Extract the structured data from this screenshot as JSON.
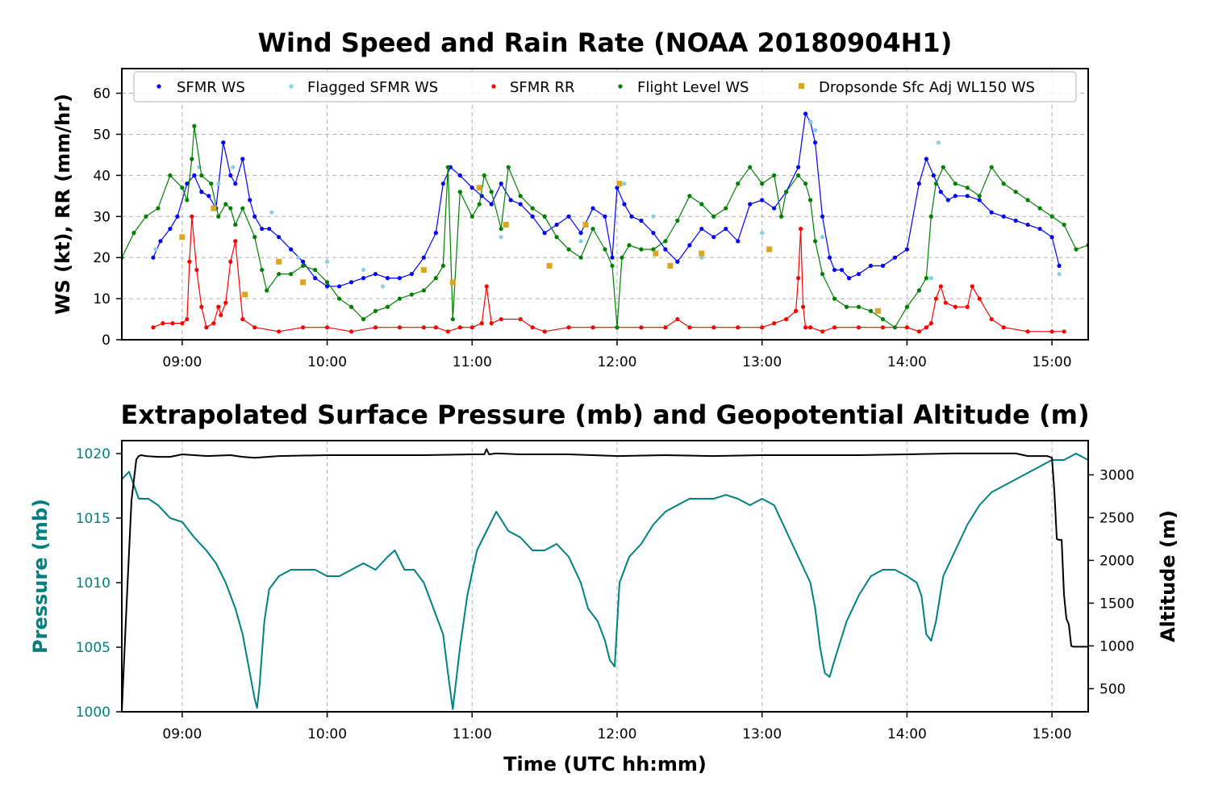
{
  "chart_data": [
    {
      "type": "line",
      "title": "Wind Speed and Rain Rate (NOAA 20180904H1)",
      "ylabel": "WS (kt), RR (mm/hr)",
      "xlabel": "",
      "x_unit": "UTC hh:mm",
      "xlim": [
        "08:35",
        "15:15"
      ],
      "ylim": [
        0,
        66
      ],
      "x_ticks": [
        "09:00",
        "10:00",
        "11:00",
        "12:00",
        "13:00",
        "14:00",
        "15:00"
      ],
      "y_ticks": [
        0,
        10,
        20,
        30,
        40,
        50,
        60
      ],
      "grid": true,
      "legend_position": "top",
      "series": [
        {
          "name": "SFMR WS",
          "color": "#0000ff",
          "marker": "dot",
          "x": [
            "08:48",
            "08:51",
            "08:55",
            "08:58",
            "09:02",
            "09:05",
            "09:08",
            "09:11",
            "09:14",
            "09:17",
            "09:20",
            "09:22",
            "09:25",
            "09:28",
            "09:30",
            "09:33",
            "09:36",
            "09:40",
            "09:45",
            "09:50",
            "09:55",
            "10:00",
            "10:05",
            "10:10",
            "10:15",
            "10:20",
            "10:25",
            "10:30",
            "10:35",
            "10:40",
            "10:45",
            "10:48",
            "10:51",
            "10:55",
            "11:00",
            "11:04",
            "11:08",
            "11:12",
            "11:16",
            "11:20",
            "11:25",
            "11:30",
            "11:35",
            "11:40",
            "11:45",
            "11:50",
            "11:55",
            "11:58",
            "12:00",
            "12:03",
            "12:06",
            "12:10",
            "12:15",
            "12:20",
            "12:25",
            "12:30",
            "12:35",
            "12:40",
            "12:45",
            "12:50",
            "12:55",
            "13:00",
            "13:05",
            "13:10",
            "13:15",
            "13:18",
            "13:20",
            "13:22",
            "13:25",
            "13:28",
            "13:30",
            "13:33",
            "13:36",
            "13:40",
            "13:45",
            "13:50",
            "13:55",
            "14:00",
            "14:05",
            "14:08",
            "14:11",
            "14:14",
            "14:17",
            "14:20",
            "14:25",
            "14:30",
            "14:35",
            "14:40",
            "14:45",
            "14:50",
            "14:55",
            "15:00",
            "15:03"
          ],
          "values": [
            20,
            24,
            27,
            30,
            38,
            40,
            36,
            35,
            32,
            48,
            40,
            38,
            44,
            34,
            30,
            27,
            27,
            25,
            22,
            19,
            15,
            13,
            13,
            14,
            15,
            16,
            15,
            15,
            16,
            20,
            26,
            38,
            42,
            40,
            37,
            35,
            33,
            38,
            34,
            33,
            30,
            26,
            28,
            30,
            26,
            32,
            30,
            20,
            37,
            33,
            30,
            29,
            26,
            22,
            19,
            23,
            27,
            25,
            27,
            24,
            33,
            34,
            32,
            36,
            42,
            55,
            53,
            48,
            30,
            20,
            17,
            17,
            15,
            16,
            18,
            18,
            20,
            22,
            38,
            44,
            40,
            36,
            34,
            35,
            35,
            34,
            31,
            30,
            29,
            28,
            27,
            25,
            18
          ]
        },
        {
          "name": "Flagged SFMR WS",
          "color": "#87ceeb",
          "marker": "dot",
          "x": [
            "08:49",
            "09:07",
            "09:15",
            "09:21",
            "09:37",
            "09:48",
            "10:00",
            "10:15",
            "10:23",
            "11:12",
            "11:45",
            "12:03",
            "12:15",
            "12:35",
            "13:00",
            "13:20",
            "13:22",
            "13:25",
            "14:10",
            "14:13",
            "15:03"
          ],
          "values": [
            22,
            42,
            38,
            42,
            31,
            20,
            19,
            17,
            13,
            25,
            24,
            38,
            30,
            20,
            26,
            53,
            51,
            25,
            15,
            48,
            16
          ]
        },
        {
          "name": "SFMR RR",
          "color": "#ff0000",
          "marker": "dot",
          "x": [
            "08:48",
            "08:52",
            "08:56",
            "09:00",
            "09:02",
            "09:03",
            "09:04",
            "09:06",
            "09:08",
            "09:10",
            "09:13",
            "09:15",
            "09:16",
            "09:18",
            "09:20",
            "09:22",
            "09:25",
            "09:30",
            "09:40",
            "09:50",
            "10:00",
            "10:10",
            "10:20",
            "10:30",
            "10:40",
            "10:45",
            "10:50",
            "10:55",
            "11:00",
            "11:04",
            "11:06",
            "11:08",
            "11:12",
            "11:20",
            "11:25",
            "11:30",
            "11:40",
            "11:50",
            "12:00",
            "12:10",
            "12:20",
            "12:25",
            "12:30",
            "12:40",
            "12:50",
            "13:00",
            "13:05",
            "13:10",
            "13:14",
            "13:15",
            "13:16",
            "13:17",
            "13:18",
            "13:20",
            "13:25",
            "13:30",
            "13:40",
            "13:50",
            "14:00",
            "14:05",
            "14:08",
            "14:10",
            "14:12",
            "14:14",
            "14:16",
            "14:20",
            "14:25",
            "14:27",
            "14:30",
            "14:35",
            "14:40",
            "14:50",
            "15:00",
            "15:05"
          ],
          "values": [
            3,
            4,
            4,
            4,
            5,
            19,
            30,
            17,
            8,
            3,
            4,
            8,
            6,
            9,
            19,
            24,
            5,
            3,
            2,
            3,
            3,
            2,
            3,
            3,
            3,
            3,
            2,
            3,
            3,
            4,
            13,
            4,
            5,
            5,
            3,
            2,
            3,
            3,
            3,
            3,
            3,
            5,
            3,
            3,
            3,
            3,
            4,
            5,
            7,
            15,
            27,
            8,
            3,
            3,
            2,
            3,
            3,
            3,
            3,
            2,
            3,
            4,
            10,
            13,
            9,
            8,
            8,
            13,
            10,
            5,
            3,
            2,
            2,
            2
          ]
        },
        {
          "name": "Flight Level WS",
          "color": "#008000",
          "marker": "dot",
          "x": [
            "08:35",
            "08:40",
            "08:45",
            "08:50",
            "08:55",
            "09:00",
            "09:02",
            "09:04",
            "09:05",
            "09:08",
            "09:12",
            "09:15",
            "09:18",
            "09:20",
            "09:22",
            "09:25",
            "09:30",
            "09:33",
            "09:35",
            "09:40",
            "09:45",
            "09:50",
            "09:55",
            "10:00",
            "10:05",
            "10:10",
            "10:15",
            "10:20",
            "10:25",
            "10:30",
            "10:35",
            "10:40",
            "10:45",
            "10:48",
            "10:50",
            "10:52",
            "10:55",
            "11:00",
            "11:03",
            "11:05",
            "11:08",
            "11:12",
            "11:15",
            "11:20",
            "11:25",
            "11:30",
            "11:35",
            "11:40",
            "11:45",
            "11:50",
            "11:55",
            "11:58",
            "12:00",
            "12:02",
            "12:05",
            "12:10",
            "12:15",
            "12:20",
            "12:25",
            "12:30",
            "12:35",
            "12:40",
            "12:45",
            "12:50",
            "12:55",
            "13:00",
            "13:05",
            "13:08",
            "13:10",
            "13:15",
            "13:18",
            "13:20",
            "13:22",
            "13:25",
            "13:30",
            "13:35",
            "13:40",
            "13:45",
            "13:50",
            "13:55",
            "14:00",
            "14:05",
            "14:08",
            "14:10",
            "14:12",
            "14:15",
            "14:20",
            "14:25",
            "14:30",
            "14:35",
            "14:40",
            "14:45",
            "14:50",
            "14:55",
            "15:00",
            "15:05",
            "15:10",
            "15:15"
          ],
          "values": [
            20,
            26,
            30,
            32,
            40,
            37,
            34,
            44,
            52,
            40,
            38,
            30,
            33,
            32,
            28,
            32,
            25,
            17,
            12,
            16,
            16,
            18,
            17,
            14,
            10,
            8,
            5,
            7,
            8,
            10,
            11,
            12,
            15,
            18,
            42,
            5,
            36,
            30,
            33,
            40,
            36,
            27,
            42,
            35,
            32,
            30,
            25,
            22,
            20,
            27,
            22,
            18,
            3,
            20,
            23,
            22,
            22,
            24,
            29,
            35,
            33,
            30,
            32,
            38,
            42,
            38,
            40,
            30,
            36,
            40,
            38,
            34,
            24,
            16,
            10,
            8,
            8,
            7,
            5,
            3,
            8,
            12,
            15,
            30,
            38,
            42,
            38,
            37,
            35,
            42,
            38,
            36,
            34,
            32,
            30,
            28,
            22,
            23
          ]
        },
        {
          "name": "Dropsonde Sfc Adj WL150 WS",
          "color": "#daa520",
          "marker": "square",
          "x": [
            "09:00",
            "09:13",
            "09:26",
            "09:40",
            "09:50",
            "10:40",
            "10:52",
            "11:03",
            "11:14",
            "11:32",
            "11:47",
            "12:01",
            "12:16",
            "12:22",
            "12:35",
            "13:03",
            "13:48"
          ],
          "values": [
            25,
            32,
            11,
            19,
            14,
            17,
            14,
            37,
            28,
            18,
            28,
            38,
            21,
            18,
            21,
            22,
            7
          ]
        }
      ]
    },
    {
      "type": "line",
      "title": "Extrapolated Surface Pressure (mb) and Geopotential Altitude (m)",
      "xlabel": "Time (UTC hh:mm)",
      "ylabel": "Pressure (mb)",
      "ylabel_right": "Altitude (m)",
      "xlim": [
        "08:35",
        "15:15"
      ],
      "ylim": [
        1000,
        1021
      ],
      "ylim_right": [
        230,
        3400
      ],
      "x_ticks": [
        "09:00",
        "10:00",
        "11:00",
        "12:00",
        "13:00",
        "14:00",
        "15:00"
      ],
      "y_ticks": [
        1000,
        1005,
        1010,
        1015,
        1020
      ],
      "y_ticks_right": [
        500,
        1000,
        1500,
        2000,
        2500,
        3000
      ],
      "grid": true,
      "series": [
        {
          "name": "Pressure",
          "color": "#008080",
          "axis": "left",
          "x": [
            "08:35",
            "08:38",
            "08:42",
            "08:46",
            "08:50",
            "08:55",
            "09:00",
            "09:05",
            "09:10",
            "09:14",
            "09:18",
            "09:22",
            "09:25",
            "09:28",
            "09:30",
            "09:31",
            "09:32",
            "09:34",
            "09:36",
            "09:40",
            "09:45",
            "09:50",
            "09:55",
            "10:00",
            "10:05",
            "10:10",
            "10:15",
            "10:20",
            "10:25",
            "10:28",
            "10:32",
            "10:36",
            "10:40",
            "10:44",
            "10:48",
            "10:50",
            "10:52",
            "10:55",
            "10:58",
            "11:02",
            "11:06",
            "11:10",
            "11:15",
            "11:20",
            "11:25",
            "11:30",
            "11:35",
            "11:40",
            "11:45",
            "11:48",
            "11:52",
            "11:55",
            "11:57",
            "11:59",
            "12:01",
            "12:05",
            "12:10",
            "12:15",
            "12:20",
            "12:25",
            "12:30",
            "12:35",
            "12:40",
            "12:45",
            "12:50",
            "12:55",
            "13:00",
            "13:05",
            "13:10",
            "13:15",
            "13:20",
            "13:22",
            "13:24",
            "13:26",
            "13:28",
            "13:30",
            "13:35",
            "13:40",
            "13:45",
            "13:50",
            "13:55",
            "14:00",
            "14:04",
            "14:06",
            "14:08",
            "14:10",
            "14:12",
            "14:15",
            "14:20",
            "14:25",
            "14:30",
            "14:35",
            "14:40",
            "14:45",
            "14:50",
            "14:55",
            "15:00",
            "15:05",
            "15:10",
            "15:15"
          ],
          "values": [
            1018,
            1018.6,
            1016.5,
            1016.5,
            1016,
            1015,
            1014.7,
            1013.5,
            1012.5,
            1011.5,
            1010,
            1008,
            1006,
            1003,
            1001,
            1000.3,
            1002,
            1007,
            1009.5,
            1010.5,
            1011,
            1011,
            1011,
            1010.5,
            1010.5,
            1011,
            1011.5,
            1011,
            1012,
            1012.5,
            1011,
            1011,
            1010,
            1008,
            1006,
            1003,
            1000.2,
            1005,
            1009,
            1012.5,
            1014,
            1015.5,
            1014,
            1013.5,
            1012.5,
            1012.5,
            1013,
            1012,
            1010,
            1008,
            1007,
            1005.5,
            1004,
            1003.5,
            1010,
            1012,
            1013,
            1014.5,
            1015.5,
            1016,
            1016.5,
            1016.5,
            1016.5,
            1016.8,
            1016.5,
            1016,
            1016.5,
            1016,
            1014,
            1012,
            1010,
            1008,
            1005,
            1003,
            1002.7,
            1004,
            1007,
            1009,
            1010.5,
            1011,
            1011,
            1010.5,
            1010,
            1009,
            1006,
            1005.5,
            1007,
            1010.5,
            1012.5,
            1014.5,
            1016,
            1017,
            1017.5,
            1018,
            1018.5,
            1019,
            1019.5,
            1019.5,
            1020,
            1019.5
          ]
        },
        {
          "name": "Altitude",
          "color": "#000000",
          "axis": "right",
          "x": [
            "08:35",
            "08:37",
            "08:39",
            "08:41",
            "08:42",
            "08:43",
            "08:45",
            "08:50",
            "08:55",
            "09:00",
            "09:10",
            "09:20",
            "09:25",
            "09:30",
            "09:40",
            "10:00",
            "10:20",
            "10:40",
            "11:00",
            "11:05",
            "11:06",
            "11:07",
            "11:10",
            "11:20",
            "11:40",
            "12:00",
            "12:20",
            "12:40",
            "13:00",
            "13:20",
            "13:40",
            "14:00",
            "14:20",
            "14:40",
            "14:45",
            "14:50",
            "14:58",
            "15:00",
            "15:01",
            "15:02",
            "15:03",
            "15:04",
            "15:05",
            "15:06",
            "15:07",
            "15:08",
            "15:09",
            "15:15"
          ],
          "values": [
            230,
            1500,
            2700,
            3180,
            3220,
            3230,
            3220,
            3210,
            3210,
            3240,
            3220,
            3230,
            3210,
            3200,
            3220,
            3230,
            3230,
            3230,
            3240,
            3240,
            3300,
            3240,
            3250,
            3240,
            3240,
            3220,
            3230,
            3220,
            3230,
            3230,
            3230,
            3240,
            3250,
            3250,
            3250,
            3220,
            3220,
            3200,
            2800,
            2250,
            2240,
            2240,
            1600,
            1320,
            1250,
            1000,
            990,
            990
          ]
        }
      ]
    }
  ]
}
